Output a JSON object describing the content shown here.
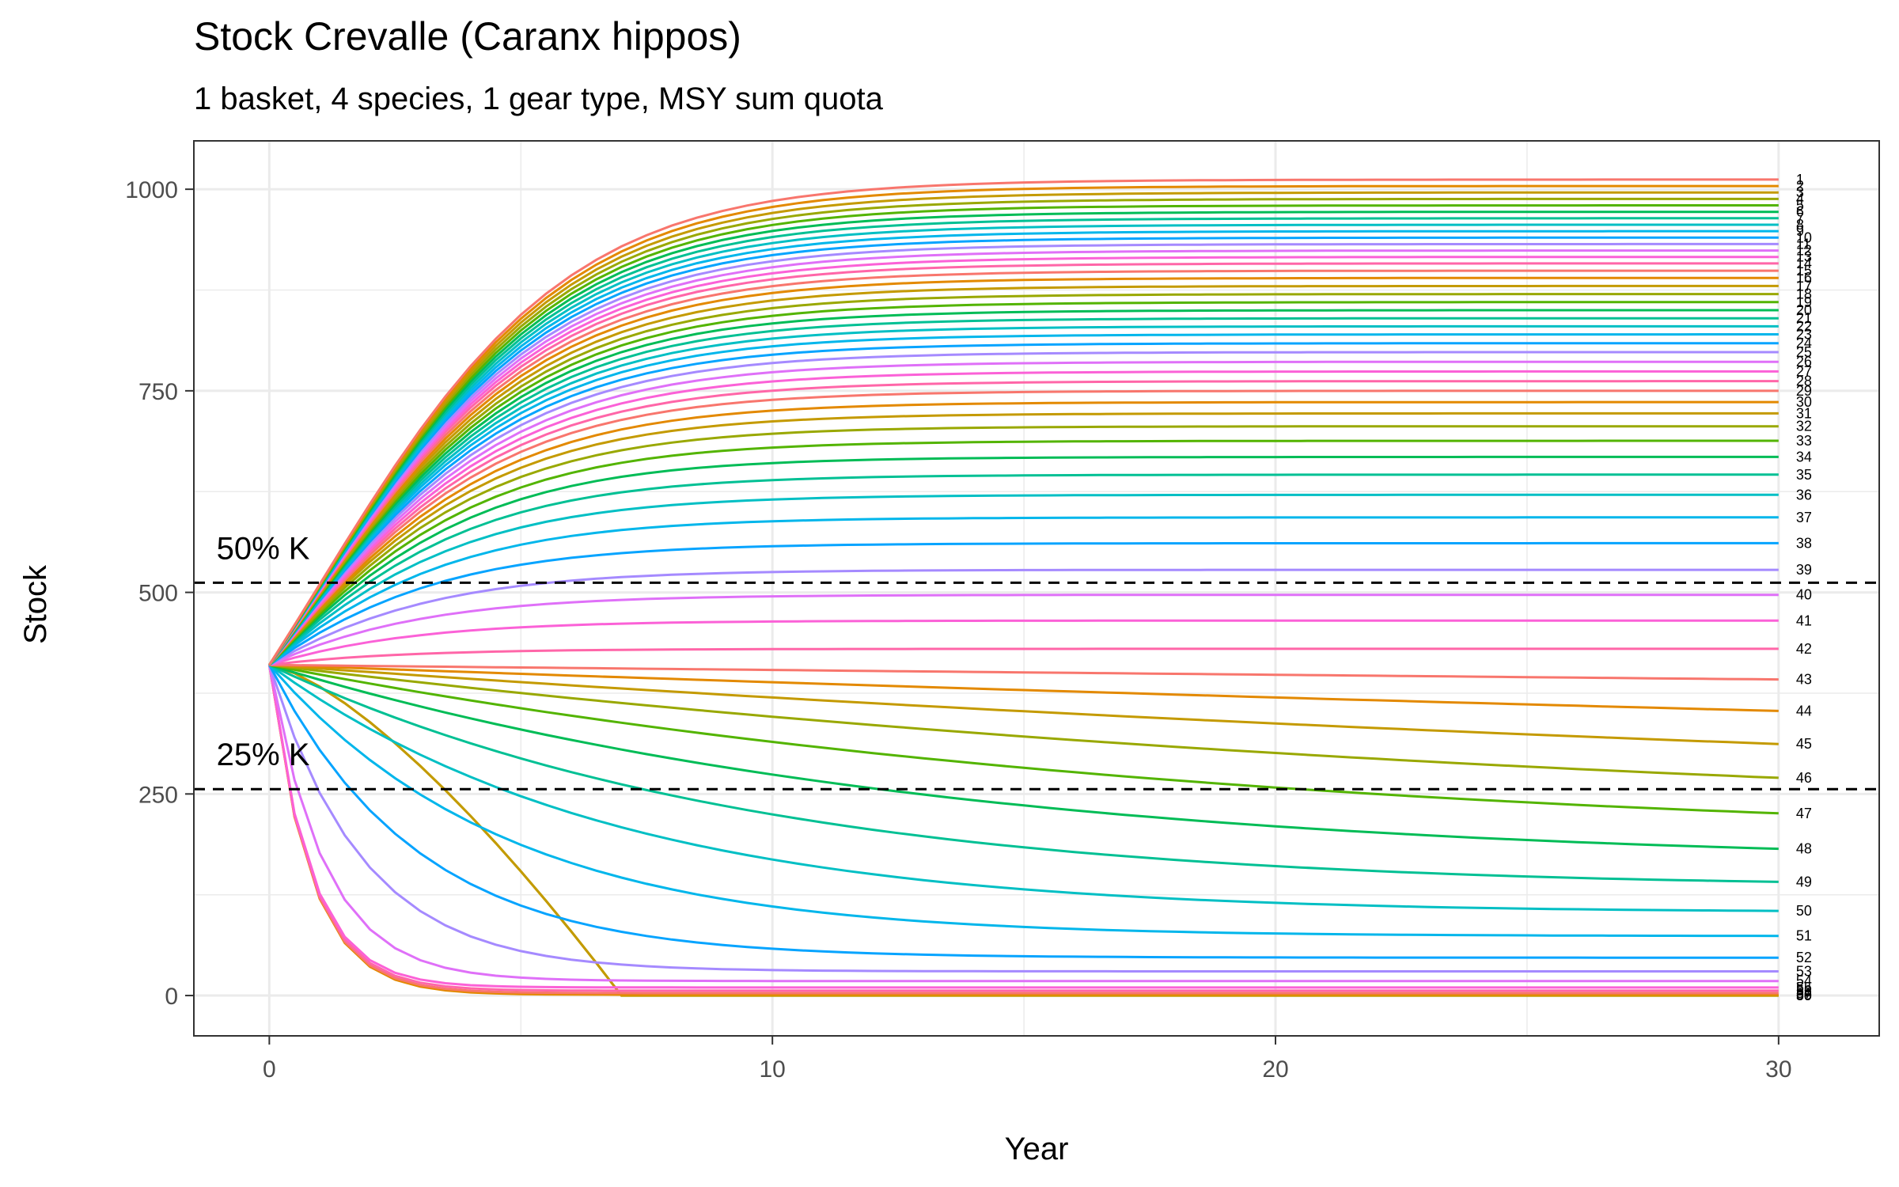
{
  "chart_data": {
    "type": "line",
    "title": "Stock Crevalle (Caranx hippos)",
    "subtitle": "1 basket, 4 species, 1 gear type, MSY sum quota",
    "xlabel": "Year",
    "ylabel": "Stock",
    "xlim": [
      -1.5,
      32
    ],
    "ylim": [
      -50,
      1060
    ],
    "x_ticks": [
      0,
      10,
      20,
      30
    ],
    "y_ticks": [
      0,
      250,
      500,
      750,
      1000
    ],
    "grid": true,
    "start_value": 410,
    "reference_lines": [
      {
        "label": "50% K",
        "y": 512
      },
      {
        "label": "25% K",
        "y": 256
      }
    ],
    "series_count": 60,
    "final_values": [
      1012,
      1004,
      996,
      988,
      980,
      972,
      964,
      956,
      948,
      940,
      932,
      924,
      916,
      908,
      899,
      890,
      880,
      870,
      860,
      850,
      840,
      830,
      820,
      809,
      798,
      786,
      774,
      762,
      750,
      736,
      722,
      706,
      688,
      668,
      646,
      621,
      593,
      561,
      528,
      497,
      465,
      430,
      392,
      353,
      312,
      270,
      226,
      182,
      141,
      105,
      74,
      47,
      30,
      18,
      10,
      6,
      3,
      1,
      0,
      0
    ],
    "series_labels": [
      "1",
      "2",
      "3",
      "4",
      "5",
      "6",
      "7",
      "8",
      "9",
      "10",
      "11",
      "12",
      "13",
      "14",
      "15",
      "16",
      "17",
      "18",
      "19",
      "20",
      "21",
      "22",
      "23",
      "24",
      "25",
      "26",
      "27",
      "28",
      "29",
      "30",
      "31",
      "32",
      "33",
      "34",
      "35",
      "36",
      "37",
      "38",
      "39",
      "40",
      "41",
      "42",
      "43",
      "44",
      "45",
      "46",
      "47",
      "48",
      "49",
      "50",
      "51",
      "52",
      "53",
      "54",
      "55",
      "56",
      "57",
      "58",
      "59",
      "60"
    ],
    "palette": [
      "#F8766D",
      "#E38900",
      "#C49A00",
      "#99A800",
      "#53B400",
      "#00BC56",
      "#00C094",
      "#00BFC4",
      "#00B6EB",
      "#06A4FF",
      "#A58AFF",
      "#DF70F8",
      "#FB61D7",
      "#FF66A8"
    ]
  }
}
